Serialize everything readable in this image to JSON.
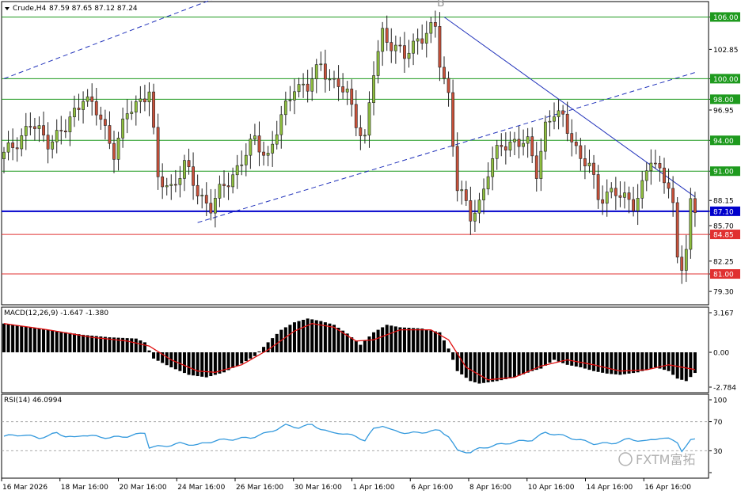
{
  "header": {
    "symbol": "Crude,H4",
    "ohlc": "87.59 87.65 87.12 87.24"
  },
  "watermark": "FXTM富拓",
  "colors": {
    "bull": "#8fbf3f",
    "bear": "#c8513a",
    "support": "#e03030",
    "resistance": "#1e9a1e",
    "current": "#0000cc",
    "trend": "#2233bb",
    "macd_signal": "#e01010",
    "rsi": "#3399dd"
  },
  "chart_data": [
    {
      "type": "candlestick",
      "title": "Crude,H4",
      "ylim": [
        78.0,
        107.5
      ],
      "y_ticks": [
        "106.00",
        "102.85",
        "100.00",
        "98.00",
        "96.95",
        "94.00",
        "91.00",
        "88.15",
        "87.10",
        "85.70",
        "84.85",
        "82.25",
        "81.00",
        "79.30"
      ],
      "x_tick_labels": [
        "16 Mar 2026",
        "18 Mar 16:00",
        "20 Mar 16:00",
        "24 Mar 16:00",
        "26 Mar 16:00",
        "30 Mar 16:00",
        "1 Apr 16:00",
        "6 Apr 16:00",
        "8 Apr 16:00",
        "10 Apr 16:00",
        "14 Apr 16:00",
        "16 Apr 16:00"
      ],
      "horizontal_levels": [
        {
          "value": 106.0,
          "label": "106.00",
          "kind": "resistance"
        },
        {
          "value": 100.0,
          "label": "100.00",
          "kind": "resistance"
        },
        {
          "value": 98.0,
          "label": "98.00",
          "kind": "resistance"
        },
        {
          "value": 94.0,
          "label": "94.00",
          "kind": "resistance"
        },
        {
          "value": 91.0,
          "label": "91.00",
          "kind": "resistance"
        },
        {
          "value": 87.1,
          "label": "87.10",
          "kind": "current"
        },
        {
          "value": 84.85,
          "label": "84.85",
          "kind": "support"
        },
        {
          "value": 81.0,
          "label": "81.00",
          "kind": "support"
        }
      ],
      "close_path": [
        [
          0,
          92.5
        ],
        [
          6,
          95.5
        ],
        [
          10,
          94.0
        ],
        [
          14,
          95.0
        ],
        [
          18,
          98.5
        ],
        [
          22,
          96.0
        ],
        [
          25,
          93.0
        ],
        [
          28,
          96.5
        ],
        [
          31,
          98.0
        ],
        [
          33,
          99.0
        ],
        [
          35,
          90.0
        ],
        [
          38,
          89.5
        ],
        [
          41,
          91.5
        ],
        [
          44,
          89.0
        ],
        [
          47,
          87.5
        ],
        [
          50,
          89.5
        ],
        [
          54,
          92.0
        ],
        [
          57,
          94.0
        ],
        [
          60,
          92.5
        ],
        [
          63,
          96.0
        ],
        [
          66,
          99.5
        ],
        [
          69,
          99.0
        ],
        [
          72,
          101.5
        ],
        [
          75,
          99.5
        ],
        [
          78,
          98.5
        ],
        [
          80,
          96.0
        ],
        [
          82,
          94.0
        ],
        [
          84,
          100.5
        ],
        [
          86,
          104.5
        ],
        [
          88,
          103.5
        ],
        [
          91,
          102.0
        ],
        [
          94,
          104.0
        ],
        [
          96,
          104.5
        ],
        [
          98,
          104.8
        ],
        [
          99,
          101.5
        ],
        [
          101,
          98.5
        ],
        [
          103,
          89.5
        ],
        [
          106,
          86.5
        ],
        [
          108,
          88.0
        ],
        [
          110,
          91.0
        ],
        [
          113,
          93.5
        ],
        [
          116,
          94.0
        ],
        [
          119,
          93.5
        ],
        [
          121,
          91.0
        ],
        [
          123,
          95.5
        ],
        [
          125,
          96.5
        ],
        [
          127,
          96.0
        ],
        [
          129,
          94.5
        ],
        [
          131,
          92.0
        ],
        [
          133,
          91.5
        ],
        [
          135,
          88.5
        ],
        [
          137,
          89.0
        ],
        [
          140,
          88.5
        ],
        [
          143,
          88.0
        ],
        [
          145,
          89.5
        ],
        [
          147,
          92.0
        ],
        [
          149,
          91.0
        ],
        [
          151,
          90.0
        ],
        [
          152,
          87.5
        ],
        [
          153,
          82.0
        ],
        [
          154,
          81.5
        ],
        [
          155,
          83.5
        ],
        [
          156,
          88.0
        ],
        [
          157,
          87.24
        ]
      ],
      "trendlines": [
        {
          "from": [
            0,
            100.0
          ],
          "to": [
            54,
            108.8
          ],
          "style": "dashed"
        },
        {
          "from": [
            44,
            86.0
          ],
          "to": [
            157,
            100.6
          ],
          "style": "dashed"
        },
        {
          "from": [
            100,
            106.0
          ],
          "to": [
            157,
            88.5
          ],
          "style": "solid"
        }
      ],
      "top_marker": "B"
    },
    {
      "type": "macd",
      "title": "MACD(12,26,9) -1.647 -1.380",
      "ylim": [
        -2.784,
        3.167
      ],
      "y_ticks": [
        "3.167",
        "0.00",
        "-2.784"
      ],
      "histogram_path": [
        [
          0,
          2.3
        ],
        [
          6,
          2.0
        ],
        [
          12,
          1.7
        ],
        [
          18,
          1.4
        ],
        [
          24,
          1.2
        ],
        [
          30,
          1.1
        ],
        [
          32,
          0.8
        ],
        [
          34,
          -0.5
        ],
        [
          38,
          -1.2
        ],
        [
          42,
          -1.8
        ],
        [
          46,
          -2.0
        ],
        [
          50,
          -1.6
        ],
        [
          54,
          -0.9
        ],
        [
          57,
          -0.3
        ],
        [
          60,
          0.8
        ],
        [
          63,
          1.8
        ],
        [
          66,
          2.4
        ],
        [
          69,
          2.7
        ],
        [
          72,
          2.5
        ],
        [
          75,
          2.2
        ],
        [
          78,
          1.5
        ],
        [
          81,
          0.6
        ],
        [
          84,
          1.6
        ],
        [
          87,
          2.2
        ],
        [
          90,
          2.0
        ],
        [
          95,
          1.9
        ],
        [
          99,
          1.6
        ],
        [
          101,
          0.3
        ],
        [
          103,
          -1.5
        ],
        [
          106,
          -2.3
        ],
        [
          108,
          -2.5
        ],
        [
          112,
          -2.3
        ],
        [
          116,
          -2.0
        ],
        [
          120,
          -1.5
        ],
        [
          122,
          -1.3
        ],
        [
          125,
          -0.6
        ],
        [
          128,
          -1.0
        ],
        [
          131,
          -1.2
        ],
        [
          134,
          -1.5
        ],
        [
          137,
          -1.7
        ],
        [
          140,
          -1.8
        ],
        [
          144,
          -1.6
        ],
        [
          148,
          -1.2
        ],
        [
          151,
          -1.5
        ],
        [
          153,
          -2.1
        ],
        [
          155,
          -2.3
        ],
        [
          157,
          -1.647
        ]
      ],
      "signal_path": [
        [
          0,
          2.3
        ],
        [
          10,
          1.8
        ],
        [
          20,
          1.2
        ],
        [
          28,
          0.9
        ],
        [
          33,
          0.5
        ],
        [
          38,
          -0.6
        ],
        [
          44,
          -1.5
        ],
        [
          48,
          -1.6
        ],
        [
          54,
          -1.0
        ],
        [
          60,
          0.2
        ],
        [
          66,
          1.7
        ],
        [
          70,
          2.3
        ],
        [
          75,
          2.0
        ],
        [
          80,
          0.9
        ],
        [
          84,
          1.0
        ],
        [
          90,
          1.8
        ],
        [
          97,
          1.8
        ],
        [
          101,
          1.0
        ],
        [
          105,
          -1.2
        ],
        [
          110,
          -2.2
        ],
        [
          116,
          -2.0
        ],
        [
          122,
          -1.1
        ],
        [
          128,
          -0.6
        ],
        [
          134,
          -1.0
        ],
        [
          140,
          -1.5
        ],
        [
          146,
          -1.4
        ],
        [
          151,
          -1.0
        ],
        [
          157,
          -1.38
        ]
      ]
    },
    {
      "type": "rsi",
      "title": "RSI(14) 46.0994",
      "ylim": [
        0,
        100
      ],
      "y_ticks": [
        "100",
        "70",
        "30",
        "0"
      ],
      "levels": [
        70,
        30
      ],
      "values": [
        [
          0,
          50
        ],
        [
          4,
          52
        ],
        [
          8,
          48
        ],
        [
          10,
          50
        ],
        [
          12,
          55
        ],
        [
          14,
          50
        ],
        [
          16,
          48
        ],
        [
          18,
          52
        ],
        [
          20,
          50
        ],
        [
          24,
          48
        ],
        [
          28,
          50
        ],
        [
          30,
          52
        ],
        [
          32,
          55
        ],
        [
          33,
          35
        ],
        [
          36,
          36
        ],
        [
          40,
          40
        ],
        [
          44,
          38
        ],
        [
          48,
          44
        ],
        [
          52,
          46
        ],
        [
          56,
          48
        ],
        [
          60,
          55
        ],
        [
          64,
          65
        ],
        [
          67,
          62
        ],
        [
          70,
          66
        ],
        [
          72,
          60
        ],
        [
          74,
          55
        ],
        [
          76,
          55
        ],
        [
          78,
          52
        ],
        [
          80,
          50
        ],
        [
          82,
          44
        ],
        [
          84,
          60
        ],
        [
          86,
          65
        ],
        [
          88,
          58
        ],
        [
          92,
          54
        ],
        [
          96,
          56
        ],
        [
          99,
          58
        ],
        [
          101,
          50
        ],
        [
          103,
          30
        ],
        [
          106,
          28
        ],
        [
          108,
          33
        ],
        [
          112,
          38
        ],
        [
          116,
          42
        ],
        [
          120,
          45
        ],
        [
          123,
          55
        ],
        [
          126,
          52
        ],
        [
          130,
          46
        ],
        [
          134,
          40
        ],
        [
          138,
          40
        ],
        [
          142,
          46
        ],
        [
          146,
          43
        ],
        [
          149,
          48
        ],
        [
          151,
          46
        ],
        [
          153,
          42
        ],
        [
          154,
          30
        ],
        [
          155,
          36
        ],
        [
          156,
          44
        ],
        [
          157,
          46.0994
        ]
      ]
    }
  ]
}
